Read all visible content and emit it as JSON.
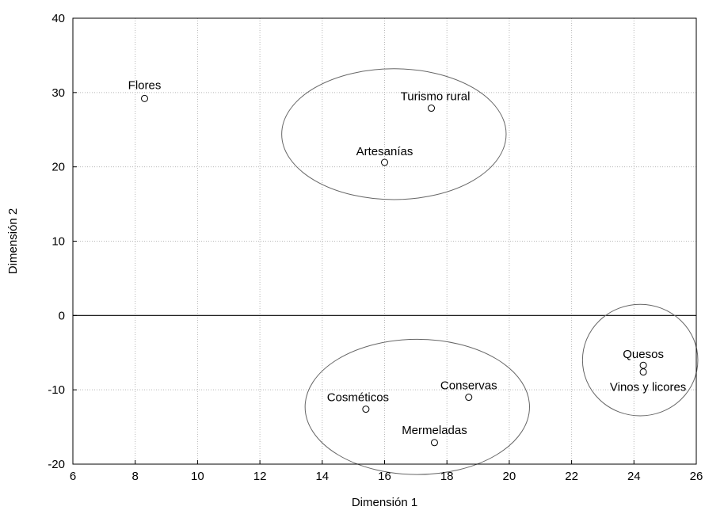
{
  "chart_data": {
    "type": "scatter",
    "xlabel": "Dimensión 1",
    "ylabel": "Dimensión 2",
    "xlim": [
      6,
      26
    ],
    "ylim": [
      -20,
      40
    ],
    "xticks": [
      6,
      8,
      10,
      12,
      14,
      16,
      18,
      20,
      22,
      24,
      26
    ],
    "yticks": [
      -20,
      -10,
      0,
      10,
      20,
      30,
      40
    ],
    "xtick_labels": [
      "6",
      "8",
      "10",
      "12",
      "14",
      "16",
      "18",
      "20",
      "22",
      "24",
      "26"
    ],
    "ytick_labels": [
      "-20",
      "-10",
      "0",
      "10",
      "20",
      "30",
      "40"
    ],
    "grid": true,
    "reference_line_y": 0,
    "points": [
      {
        "label": "Flores",
        "x": 8.3,
        "y": 29.2
      },
      {
        "label": "Turismo rural",
        "x": 17.5,
        "y": 27.9
      },
      {
        "label": "Artesanías",
        "x": 16.0,
        "y": 20.6
      },
      {
        "label": "Quesos",
        "x": 24.3,
        "y": -6.7
      },
      {
        "label": "Vinos y licores",
        "x": 24.3,
        "y": -7.6
      },
      {
        "label": "Conservas",
        "x": 18.7,
        "y": -11.0
      },
      {
        "label": "Cosméticos",
        "x": 15.4,
        "y": -12.6
      },
      {
        "label": "Mermeladas",
        "x": 17.6,
        "y": -17.1
      }
    ],
    "clusters": [
      {
        "cx": 16.3,
        "cy": 24.4,
        "rx": 3.6,
        "ry": 8.8
      },
      {
        "cx": 17.05,
        "cy": -12.3,
        "rx": 3.6,
        "ry": 9.1
      },
      {
        "cx": 24.2,
        "cy": -6.0,
        "rx": 1.85,
        "ry": 7.5
      }
    ]
  }
}
